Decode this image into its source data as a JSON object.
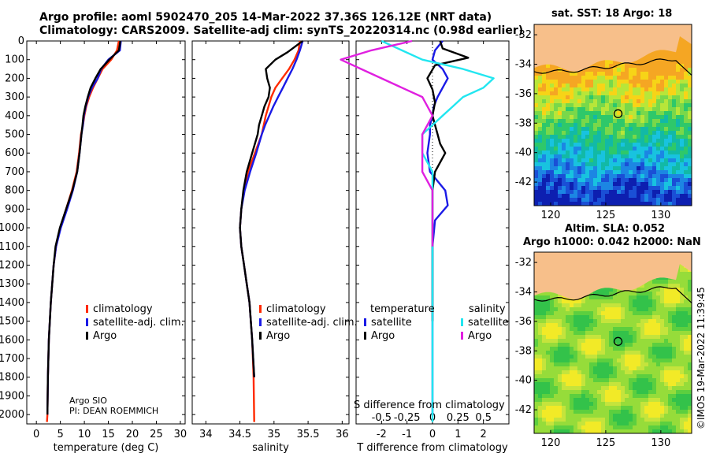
{
  "header": {
    "line1": "Argo profile: aoml 5902470_205 14-Mar-2022 37.36S 126.12E (NRT data)",
    "line2": "Climatology: CARS2009. Satellite-adj clim: synTS_20220314.nc (0.98d earlier)"
  },
  "colors": {
    "climatology": "#ff2a00",
    "satellite": "#1a1ae6",
    "argo": "#000000",
    "sal_satellite": "#22e6f0",
    "sal_argo": "#e020e0"
  },
  "credit": {
    "pi_line1": "Argo SIO",
    "pi_line2": "PI: DEAN ROEMMICH"
  },
  "timestamp": "©IMOS 19-Mar-2022 11:39:45",
  "chart_data": [
    {
      "type": "line",
      "title": "",
      "xlabel": "temperature (deg C)",
      "ylabel": "",
      "xlim": [
        -2,
        31
      ],
      "ylim": [
        2050,
        0
      ],
      "xticks": [
        0,
        5,
        10,
        15,
        20,
        25,
        30
      ],
      "yticks": [
        0,
        100,
        200,
        300,
        400,
        500,
        600,
        700,
        800,
        900,
        1000,
        1100,
        1200,
        1300,
        1400,
        1500,
        1600,
        1700,
        1800,
        1900,
        2000
      ],
      "legend": [
        "climatology",
        "satellite-adj. clim.",
        "Argo"
      ],
      "series": [
        {
          "name": "climatology",
          "color": "#ff2a00",
          "x": [
            17.2,
            16.8,
            15.6,
            13.8,
            12.8,
            11.8,
            11.0,
            10.4,
            10.0,
            9.7,
            9.3,
            8.9,
            8.4,
            7.4,
            6.2,
            5.0,
            4.1,
            3.6,
            3.0,
            2.6,
            2.4,
            2.3,
            2.2
          ],
          "y": [
            0,
            50,
            100,
            150,
            200,
            250,
            300,
            350,
            400,
            450,
            500,
            600,
            700,
            800,
            900,
            1000,
            1100,
            1200,
            1400,
            1600,
            1800,
            2000,
            2040
          ]
        },
        {
          "name": "satellite-adj. clim.",
          "color": "#1a1ae6",
          "x": [
            17.6,
            17.4,
            15.0,
            13.5,
            12.8,
            11.6,
            10.8,
            10.3,
            9.9,
            9.7,
            9.4,
            9.0,
            8.5,
            7.6,
            6.4,
            5.1,
            4.1,
            3.6,
            3.0,
            2.6,
            2.4,
            2.3
          ],
          "y": [
            0,
            50,
            100,
            150,
            200,
            250,
            300,
            350,
            400,
            450,
            500,
            600,
            700,
            800,
            900,
            1000,
            1100,
            1200,
            1400,
            1600,
            1800,
            2000
          ]
        },
        {
          "name": "Argo",
          "color": "#000000",
          "x": [
            17.5,
            17.2,
            15.2,
            13.4,
            12.3,
            11.3,
            10.7,
            10.2,
            9.8,
            9.6,
            9.4,
            9.0,
            8.5,
            7.5,
            6.2,
            4.9,
            4.0,
            3.6,
            3.0,
            2.6,
            2.4,
            2.3
          ],
          "y": [
            0,
            50,
            100,
            150,
            200,
            250,
            300,
            350,
            400,
            450,
            500,
            600,
            700,
            800,
            900,
            1000,
            1100,
            1200,
            1400,
            1600,
            1800,
            2000
          ]
        }
      ]
    },
    {
      "type": "line",
      "title": "",
      "xlabel": "salinity",
      "xlim": [
        33.8,
        36.1
      ],
      "ylim": [
        2050,
        0
      ],
      "xticks": [
        34,
        34.5,
        35,
        35.5,
        36
      ],
      "xticklabels": [
        "34",
        "34.5",
        "35",
        "35.5",
        "36"
      ],
      "legend": [
        "climatology",
        "satellite-adj. clim.",
        "Argo"
      ],
      "series": [
        {
          "name": "climatology",
          "color": "#ff2a00",
          "x": [
            35.38,
            35.36,
            35.3,
            35.22,
            35.12,
            35.02,
            34.96,
            34.92,
            34.88,
            34.85,
            34.82,
            34.72,
            34.62,
            34.56,
            34.52,
            34.5,
            34.52,
            34.56,
            34.6,
            34.64,
            34.68,
            34.7,
            34.71
          ],
          "y": [
            0,
            50,
            100,
            150,
            200,
            250,
            300,
            350,
            400,
            450,
            500,
            600,
            700,
            800,
            900,
            1000,
            1100,
            1200,
            1300,
            1400,
            1600,
            1800,
            2040
          ]
        },
        {
          "name": "satellite-adj. clim.",
          "color": "#1a1ae6",
          "x": [
            35.42,
            35.38,
            35.33,
            35.27,
            35.2,
            35.13,
            35.06,
            34.99,
            34.93,
            34.87,
            34.82,
            34.74,
            34.65,
            34.57,
            34.52,
            34.5,
            34.52,
            34.56,
            34.6,
            34.64,
            34.68,
            34.71
          ],
          "y": [
            0,
            50,
            100,
            150,
            200,
            250,
            300,
            350,
            400,
            450,
            500,
            600,
            700,
            800,
            900,
            1000,
            1100,
            1200,
            1300,
            1400,
            1600,
            1800
          ]
        },
        {
          "name": "Argo",
          "color": "#000000",
          "x": [
            35.42,
            35.2,
            35.02,
            34.88,
            34.9,
            34.94,
            34.92,
            34.86,
            34.82,
            34.78,
            34.76,
            34.68,
            34.6,
            34.55,
            34.52,
            34.5,
            34.52,
            34.56,
            34.6,
            34.64,
            34.68,
            34.71
          ],
          "y": [
            0,
            60,
            100,
            150,
            200,
            250,
            300,
            350,
            400,
            450,
            500,
            600,
            700,
            800,
            900,
            1000,
            1100,
            1200,
            1300,
            1400,
            1600,
            1800
          ]
        }
      ]
    },
    {
      "type": "line",
      "title": "",
      "xlabel": "T difference from climatology",
      "xlabel2": "S difference from climatology",
      "xlim": [
        -3,
        3
      ],
      "ylim": [
        2050,
        0
      ],
      "xticks": [
        -2,
        -1,
        0,
        1,
        2
      ],
      "xticks2": [
        "-0.5",
        "-0.25",
        "0",
        "0.25",
        "0.5"
      ],
      "legend_temperature_title": "temperature",
      "legend_salinity_title": "salinity",
      "legend": [
        "satellite",
        "Argo"
      ],
      "series": [
        {
          "name": "T satellite",
          "color": "#1a1ae6",
          "x": [
            0.4,
            0.1,
            0.0,
            0.4,
            0.6,
            0.4,
            0.2,
            0.05,
            0.0,
            -0.1,
            -0.1,
            -0.2,
            -0.1,
            0.5,
            0.6,
            0.1,
            0.0,
            0.0,
            0.0,
            0.0,
            0.0,
            0.0
          ],
          "y": [
            0,
            50,
            100,
            150,
            200,
            250,
            300,
            350,
            400,
            450,
            500,
            600,
            700,
            800,
            880,
            960,
            1100,
            1200,
            1400,
            1600,
            1800,
            2000
          ]
        },
        {
          "name": "T Argo",
          "color": "#000000",
          "x": [
            0.3,
            0.4,
            1.4,
            0.1,
            -0.2,
            0.0,
            0.1,
            0.0,
            0.1,
            0.2,
            0.3,
            0.5,
            0.1,
            0.0,
            0.0,
            0.0,
            0.0,
            0.0
          ],
          "y": [
            0,
            40,
            90,
            130,
            200,
            260,
            330,
            400,
            450,
            500,
            550,
            600,
            700,
            800,
            900,
            1000,
            1200,
            1500
          ]
        },
        {
          "name": "S satellite",
          "color": "#22e6f0",
          "x": [
            -0.5,
            -0.3,
            -0.1,
            0.3,
            0.6,
            0.5,
            0.3,
            0.2,
            0.1,
            0.0,
            -0.1,
            -0.1,
            0.0,
            0.0,
            0.0,
            0.0,
            0.0,
            0.0,
            0.0
          ],
          "y": [
            0,
            50,
            100,
            150,
            200,
            250,
            300,
            350,
            400,
            450,
            500,
            600,
            700,
            800,
            900,
            1000,
            1200,
            1600,
            2040
          ]
        },
        {
          "name": "S Argo",
          "color": "#e020e0",
          "x": [
            -0.2,
            -0.6,
            -0.9,
            -0.7,
            -0.3,
            -0.1,
            0.0,
            -0.1,
            -0.1,
            -0.1,
            0.0,
            0.0,
            0.0
          ],
          "y": [
            0,
            50,
            100,
            150,
            250,
            300,
            400,
            500,
            600,
            700,
            800,
            900,
            1100
          ]
        }
      ]
    },
    {
      "type": "heatmap",
      "title": "sat. SST: 18 Argo: 18",
      "xticks": [
        120,
        125,
        130
      ],
      "yticks": [
        -32,
        -34,
        -36,
        -38,
        -40,
        -42
      ]
    },
    {
      "type": "heatmap",
      "title1": "Altim. SLA: 0.052",
      "title2": "Argo h1000: 0.042 h2000: NaN",
      "xticks": [
        120,
        125,
        130
      ],
      "yticks": [
        -32,
        -34,
        -36,
        -38,
        -40,
        -42
      ]
    }
  ]
}
